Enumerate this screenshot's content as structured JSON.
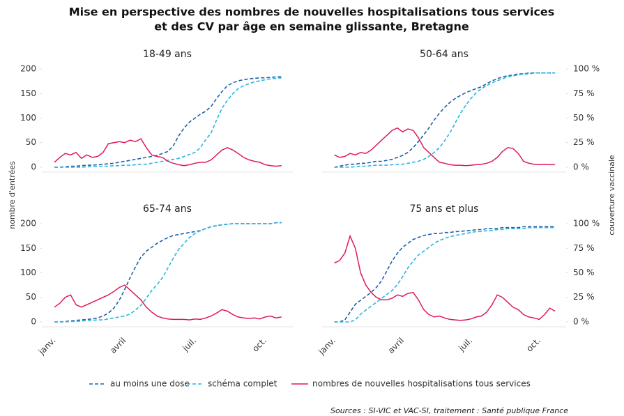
{
  "title": [
    "Mise en perspective des nombres de nouvelles hospitalisations tous services",
    "et des CV par âge en semaine glissante, Bretagne"
  ],
  "ylabel": "nombre d'entrées",
  "y2label": "couverture vaccinale",
  "source": "Sources : SI-VIC et VAC-SI, traitement : Santé publique France",
  "chart_data": [
    {
      "type": "line",
      "title": "18-49 ans",
      "categories": [
        null,
        null,
        null,
        null,
        null,
        null,
        null,
        null,
        null,
        null,
        null,
        null,
        null,
        null,
        null,
        null,
        null,
        null,
        null,
        null,
        null,
        null,
        null,
        null,
        null,
        null,
        null,
        null,
        null,
        null,
        null,
        null,
        null,
        null,
        null,
        null,
        null,
        null,
        null,
        null,
        null,
        null,
        null
      ],
      "ylim": [
        -10,
        210
      ],
      "yticks": [
        0,
        50,
        100,
        150,
        200
      ],
      "y2lim": [
        -5,
        105
      ],
      "series": [
        {
          "name": "au moins une dose",
          "color": "#1f5fa6",
          "style": "dashed",
          "axis": "y2",
          "values": [
            0,
            0,
            0.5,
            1,
            1,
            1.5,
            2,
            2,
            2.5,
            3,
            3.5,
            4,
            5,
            6,
            7,
            8,
            9,
            10,
            11,
            12,
            14,
            16,
            22,
            32,
            40,
            46,
            50,
            54,
            57,
            62,
            70,
            77,
            83,
            86,
            88,
            89,
            90,
            90.5,
            91,
            91,
            91.5,
            92,
            92
          ]
        },
        {
          "name": "schéma complet",
          "color": "#28b6e0",
          "style": "dashed",
          "axis": "y2",
          "values": [
            0,
            0,
            0,
            0,
            0,
            0,
            0.5,
            0.5,
            1,
            1,
            1,
            1.5,
            1.5,
            2,
            2,
            2.5,
            3,
            3,
            4,
            5,
            6,
            7,
            8,
            9,
            11,
            13,
            15,
            20,
            28,
            35,
            48,
            60,
            68,
            75,
            80,
            83,
            85,
            87,
            88,
            89,
            90,
            90.5,
            91
          ]
        },
        {
          "name": "nombres de nouvelles hospitalisations tous services",
          "color": "#e0185a",
          "style": "solid",
          "values": [
            10,
            20,
            28,
            25,
            30,
            18,
            25,
            20,
            22,
            30,
            48,
            50,
            52,
            50,
            55,
            52,
            58,
            40,
            25,
            22,
            20,
            12,
            8,
            5,
            3,
            5,
            8,
            10,
            10,
            15,
            25,
            35,
            40,
            35,
            28,
            20,
            15,
            12,
            10,
            5,
            3,
            2,
            3
          ]
        }
      ]
    },
    {
      "type": "line",
      "title": "50-64 ans",
      "categories": [
        null,
        null,
        null,
        null,
        null,
        null,
        null,
        null,
        null,
        null,
        null,
        null,
        null,
        null,
        null,
        null,
        null,
        null,
        null,
        null,
        null,
        null,
        null,
        null,
        null,
        null,
        null,
        null,
        null,
        null,
        null,
        null,
        null,
        null,
        null,
        null,
        null,
        null,
        null,
        null,
        null,
        null,
        null
      ],
      "ylim": [
        -10,
        210
      ],
      "y2lim": [
        -5,
        105
      ],
      "y2ticks": [
        {
          "value": 0,
          "label": "0 %"
        },
        {
          "value": 25,
          "label": "25 %"
        },
        {
          "value": 50,
          "label": "50 %"
        },
        {
          "value": 75,
          "label": "75 %"
        },
        {
          "value": 100,
          "label": "100 %"
        }
      ],
      "series": [
        {
          "name": "au moins une dose",
          "color": "#1f5fa6",
          "style": "dashed",
          "axis": "y2",
          "values": [
            0,
            1,
            2,
            3,
            3,
            4,
            4,
            5,
            6,
            6,
            7,
            8,
            10,
            12,
            15,
            20,
            26,
            33,
            40,
            48,
            55,
            61,
            66,
            70,
            73,
            76,
            78,
            80,
            82,
            85,
            88,
            90,
            92,
            93,
            94,
            95,
            95,
            96,
            96,
            96,
            96,
            96,
            96
          ]
        },
        {
          "name": "schéma complet",
          "color": "#28b6e0",
          "style": "dashed",
          "axis": "y2",
          "values": [
            0,
            0,
            0,
            0,
            0.5,
            1,
            1,
            1.5,
            2,
            2,
            2,
            2.5,
            3,
            3,
            4,
            5,
            6,
            8,
            11,
            15,
            20,
            27,
            35,
            45,
            55,
            63,
            70,
            76,
            80,
            83,
            86,
            88,
            90,
            92,
            93,
            94,
            95,
            95,
            96,
            96,
            96,
            96,
            96
          ]
        },
        {
          "name": "nombres de nouvelles hospitalisations tous services",
          "color": "#e0185a",
          "style": "solid",
          "values": [
            25,
            20,
            22,
            28,
            25,
            30,
            28,
            35,
            45,
            55,
            65,
            75,
            80,
            72,
            78,
            75,
            60,
            40,
            30,
            20,
            10,
            8,
            5,
            4,
            4,
            3,
            4,
            5,
            6,
            8,
            12,
            20,
            32,
            40,
            38,
            28,
            12,
            8,
            6,
            5,
            6,
            5,
            5
          ]
        }
      ]
    },
    {
      "type": "line",
      "title": "65-74 ans",
      "categories": [
        "janv.",
        null,
        null,
        null,
        null,
        null,
        null,
        null,
        null,
        null,
        null,
        null,
        null,
        "avril",
        null,
        null,
        null,
        null,
        null,
        null,
        null,
        null,
        null,
        null,
        null,
        null,
        "juil.",
        null,
        null,
        null,
        null,
        null,
        null,
        null,
        null,
        null,
        null,
        null,
        null,
        "oct.",
        null,
        null,
        null
      ],
      "ylim": [
        -10,
        210
      ],
      "yticks": [
        0,
        50,
        100,
        150,
        200
      ],
      "y2lim": [
        -5,
        105
      ],
      "series": [
        {
          "name": "au moins une dose",
          "color": "#1f5fa6",
          "style": "dashed",
          "axis": "y2",
          "values": [
            0,
            0,
            0.5,
            1,
            1.5,
            2,
            2.5,
            3,
            4,
            6,
            9,
            14,
            22,
            33,
            45,
            56,
            66,
            72,
            76,
            80,
            83,
            86,
            88,
            89,
            90,
            91,
            92,
            93,
            95,
            97,
            98,
            99,
            99.5,
            100,
            100,
            100,
            100,
            100,
            100,
            100,
            100,
            101,
            101
          ]
        },
        {
          "name": "schéma complet",
          "color": "#28b6e0",
          "style": "dashed",
          "axis": "y2",
          "values": [
            0,
            0,
            0,
            0.5,
            0.5,
            1,
            1,
            1.5,
            2,
            2,
            3,
            4,
            5,
            6,
            8,
            12,
            17,
            24,
            32,
            38,
            45,
            55,
            65,
            74,
            80,
            86,
            90,
            93,
            95,
            97,
            98,
            99,
            99.5,
            100,
            100,
            100,
            100,
            100,
            100,
            100,
            100,
            101,
            101
          ]
        },
        {
          "name": "nombres de nouvelles hospitalisations tous services",
          "color": "#e0185a",
          "style": "solid",
          "values": [
            30,
            38,
            50,
            55,
            35,
            30,
            35,
            40,
            45,
            50,
            55,
            62,
            70,
            75,
            65,
            55,
            45,
            30,
            20,
            12,
            8,
            6,
            5,
            5,
            5,
            4,
            6,
            5,
            8,
            12,
            18,
            25,
            22,
            15,
            10,
            8,
            7,
            8,
            6,
            10,
            12,
            8,
            10
          ]
        }
      ]
    },
    {
      "type": "line",
      "title": "75 ans et plus",
      "categories": [
        "janv.",
        null,
        null,
        null,
        null,
        null,
        null,
        null,
        null,
        null,
        null,
        null,
        null,
        "avril",
        null,
        null,
        null,
        null,
        null,
        null,
        null,
        null,
        null,
        null,
        null,
        null,
        "juil.",
        null,
        null,
        null,
        null,
        null,
        null,
        null,
        null,
        null,
        null,
        null,
        null,
        "oct.",
        null,
        null,
        null
      ],
      "ylim": [
        -10,
        210
      ],
      "y2lim": [
        -5,
        105
      ],
      "y2ticks": [
        {
          "value": 0,
          "label": "0 %"
        },
        {
          "value": 25,
          "label": "25 %"
        },
        {
          "value": 50,
          "label": "50 %"
        },
        {
          "value": 75,
          "label": "75 %"
        },
        {
          "value": 100,
          "label": "100 %"
        }
      ],
      "series": [
        {
          "name": "au moins une dose",
          "color": "#1f5fa6",
          "style": "dashed",
          "axis": "y2",
          "values": [
            0,
            0,
            2,
            10,
            18,
            22,
            26,
            30,
            35,
            42,
            52,
            62,
            70,
            76,
            80,
            84,
            86,
            88,
            89,
            90,
            90,
            91,
            91,
            92,
            92,
            93,
            93,
            94,
            94,
            95,
            95,
            95,
            96,
            96,
            96,
            96,
            97,
            97,
            97,
            97,
            97,
            97,
            97
          ]
        },
        {
          "name": "schéma complet",
          "color": "#28b6e0",
          "style": "dashed",
          "axis": "y2",
          "values": [
            0,
            0,
            0,
            0,
            2,
            8,
            12,
            16,
            20,
            24,
            28,
            32,
            38,
            46,
            55,
            62,
            68,
            72,
            76,
            80,
            83,
            85,
            87,
            88,
            89,
            90,
            91,
            92,
            92,
            93,
            93,
            94,
            94,
            95,
            95,
            95,
            95,
            96,
            96,
            96,
            96,
            96,
            96
          ]
        },
        {
          "name": "nombres de nouvelles hospitalisations tous services",
          "color": "#e0185a",
          "style": "solid",
          "values": [
            120,
            125,
            140,
            175,
            150,
            100,
            75,
            60,
            50,
            45,
            45,
            48,
            55,
            52,
            58,
            60,
            45,
            25,
            15,
            10,
            12,
            8,
            5,
            4,
            3,
            4,
            6,
            10,
            12,
            20,
            35,
            55,
            50,
            40,
            30,
            25,
            15,
            10,
            8,
            5,
            15,
            28,
            22
          ]
        }
      ]
    }
  ]
}
